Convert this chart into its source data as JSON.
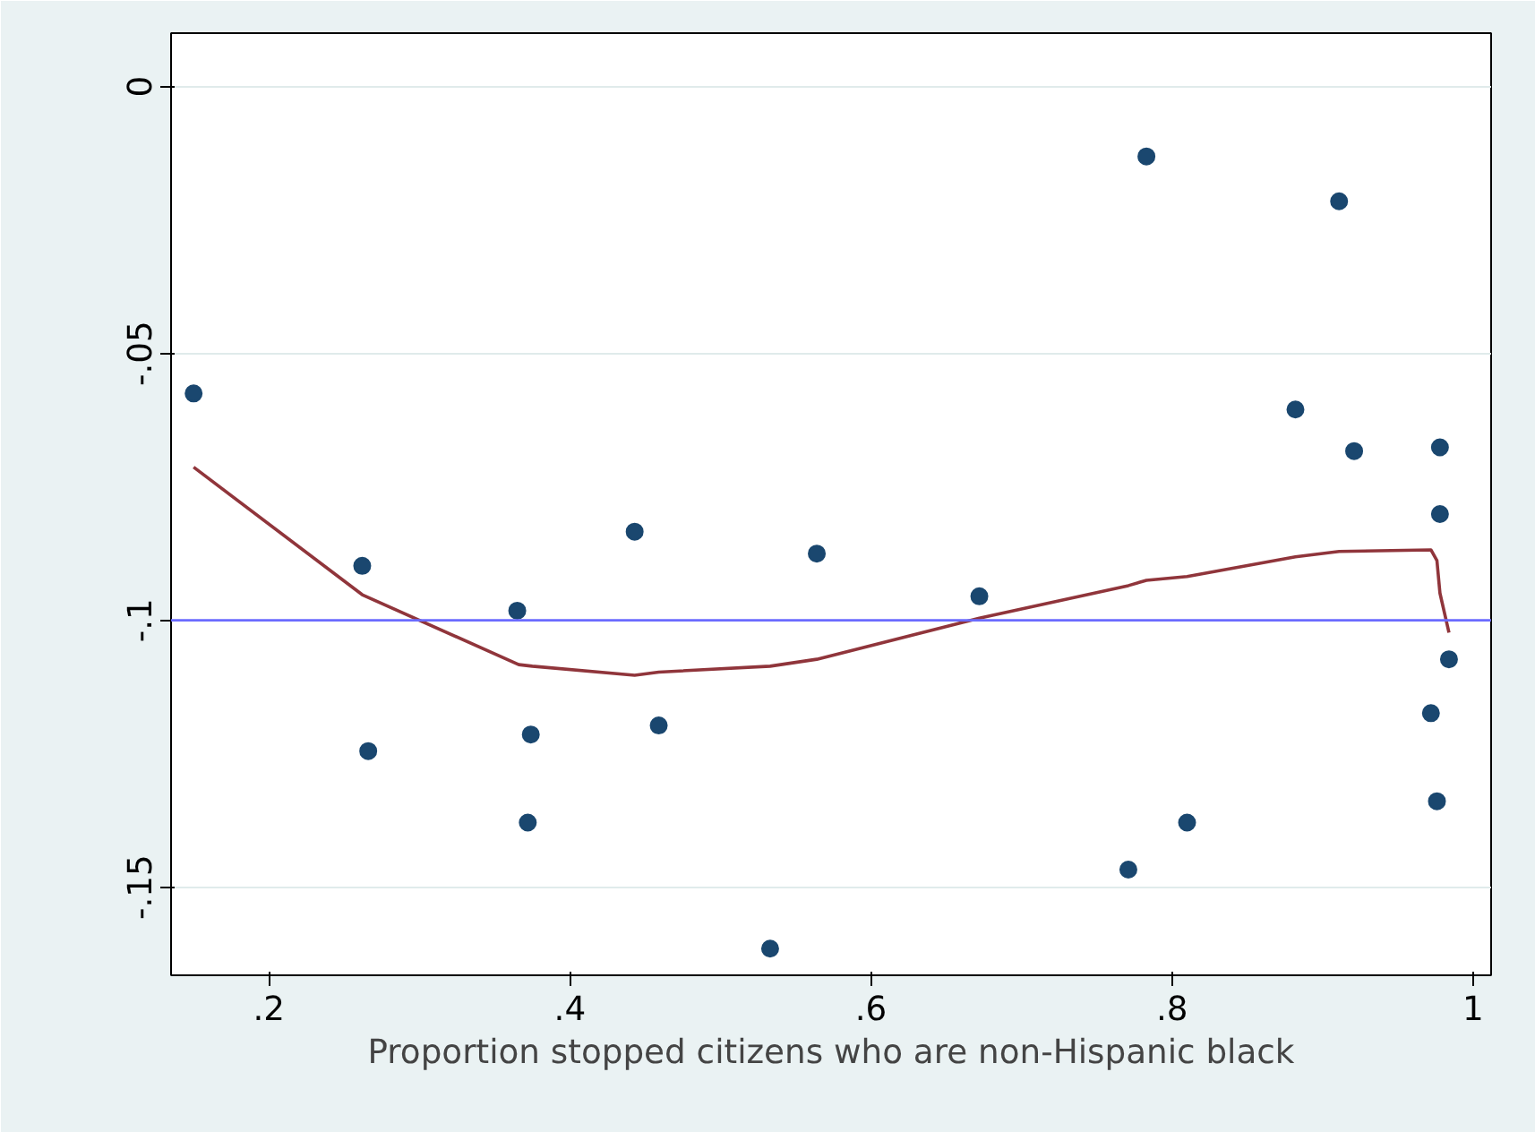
{
  "chart_data": {
    "type": "scatter",
    "xlabel": "Proportion stopped citizens who are non-Hispanic black",
    "xlim": [
      0.135,
      1.012
    ],
    "ylim": [
      -0.1665,
      0.01
    ],
    "xticks": [
      {
        "value": 0.2,
        "label": ".2"
      },
      {
        "value": 0.4,
        "label": ".4"
      },
      {
        "value": 0.6,
        "label": ".6"
      },
      {
        "value": 0.8,
        "label": ".8"
      },
      1
    ],
    "yticks": [
      {
        "value": -0.15,
        "label": "-.15"
      },
      {
        "value": -0.1,
        "label": "-.1"
      },
      {
        "value": -0.05,
        "label": "-.05"
      },
      0
    ],
    "grid": "y",
    "series": [
      {
        "color": "#1a476f",
        "marker": "circle",
        "x": [
          0.15,
          0.262,
          0.266,
          0.365,
          0.372,
          0.374,
          0.443,
          0.459,
          0.533,
          0.564,
          0.672,
          0.771,
          0.783,
          0.81,
          0.882,
          0.911,
          0.921,
          0.972,
          0.976,
          0.978,
          0.978,
          0.984
        ],
        "values": [
          -0.0575,
          -0.0898,
          -0.1245,
          -0.0982,
          -0.1379,
          -0.1214,
          -0.0834,
          -0.1197,
          -0.1615,
          -0.0875,
          -0.0955,
          -0.1467,
          -0.0131,
          -0.1379,
          -0.0605,
          -0.0215,
          -0.0683,
          -0.1174,
          -0.1339,
          -0.0676,
          -0.0801,
          -0.1073
        ]
      },
      {
        "type": "line",
        "color": "#90353b",
        "marker": "none",
        "line_style": "solid",
        "x": [
          0.15,
          0.262,
          0.366,
          0.375,
          0.443,
          0.459,
          0.533,
          0.564,
          0.672,
          0.771,
          0.783,
          0.81,
          0.882,
          0.911,
          0.972,
          0.976,
          0.978,
          0.984
        ],
        "values": [
          -0.0713,
          -0.0952,
          -0.1083,
          -0.1086,
          -0.1103,
          -0.1097,
          -0.1086,
          -0.1073,
          -0.0996,
          -0.0935,
          -0.0925,
          -0.0918,
          -0.0881,
          -0.0871,
          -0.0868,
          -0.0888,
          -0.0949,
          -0.1023
        ]
      }
    ],
    "ref_lines": [
      {
        "axis": "y",
        "value": -0.1,
        "label": null,
        "color": "#6b6bff",
        "line_style": "solid"
      }
    ]
  }
}
